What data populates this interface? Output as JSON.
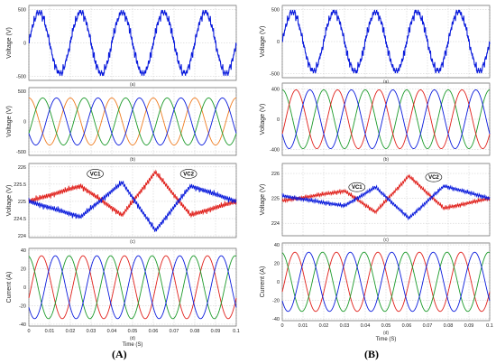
{
  "colors": {
    "blue": "#0a1bdc",
    "red": "#e0201b",
    "green": "#1c9a2a",
    "orange": "#ef7d22"
  },
  "figure_labels": [
    "(A)",
    "(B)"
  ],
  "chart_data": [
    {
      "type": "line",
      "figure": "(A)",
      "panel": "(a)",
      "ylabel": "Voltage  (V)",
      "yticks": [
        -500,
        0,
        500
      ],
      "ylim": [
        -560,
        560
      ],
      "xlim": [
        0,
        0.1
      ],
      "series": [
        {
          "color": "blue",
          "shape": "multilevel",
          "freq_hz": 50,
          "amplitude": 450,
          "phase_deg": 0,
          "steps": 5
        }
      ]
    },
    {
      "type": "line",
      "figure": "(A)",
      "panel": "(b)",
      "ylabel": "Voltage  (V)",
      "yticks": [
        -500,
        0,
        500
      ],
      "ylim": [
        -560,
        560
      ],
      "xlim": [
        0,
        0.1
      ],
      "series": [
        {
          "color": "orange",
          "shape": "sine",
          "freq_hz": 50,
          "amplitude": 390,
          "phase_deg": 90,
          "offset": 0
        },
        {
          "color": "green",
          "shape": "sine",
          "freq_hz": 50,
          "amplitude": 390,
          "phase_deg": -30,
          "offset": 0
        },
        {
          "color": "blue",
          "shape": "sine",
          "freq_hz": 50,
          "amplitude": 390,
          "phase_deg": 210,
          "offset": 0
        }
      ]
    },
    {
      "type": "line",
      "figure": "(A)",
      "panel": "(c)",
      "ylabel": "Voltage  (V)",
      "yticks": [
        224,
        224.5,
        225,
        225.5,
        226
      ],
      "ylim": [
        223.95,
        226.1
      ],
      "xlim": [
        0,
        0.1
      ],
      "annotations": [
        {
          "text": "VC1",
          "x": 0.032,
          "y": 225.8
        },
        {
          "text": "VC2",
          "x": 0.077,
          "y": 225.8
        }
      ],
      "series": [
        {
          "color": "red",
          "shape": "capacitor",
          "center": 225.0,
          "peaks": [
            [
              0.025,
              225.45
            ],
            [
              0.045,
              224.6
            ],
            [
              0.061,
              225.85
            ],
            [
              0.078,
              224.6
            ],
            [
              0.1,
              225.0
            ]
          ],
          "start": [
            0,
            225.0
          ]
        },
        {
          "color": "blue",
          "shape": "capacitor",
          "center": 225.0,
          "peaks": [
            [
              0.025,
              224.55
            ],
            [
              0.045,
              225.55
            ],
            [
              0.061,
              224.15
            ],
            [
              0.078,
              225.45
            ],
            [
              0.1,
              225.0
            ]
          ],
          "start": [
            0,
            225.0
          ]
        }
      ]
    },
    {
      "type": "line",
      "figure": "(A)",
      "panel": "(d)",
      "ylabel": "Current  (A)",
      "xlabel": "Time (S)",
      "yticks": [
        -40,
        -20,
        0,
        20,
        40
      ],
      "ylim": [
        -42,
        42
      ],
      "xlim": [
        0,
        0.1
      ],
      "xticks": [
        0,
        0.01,
        0.02,
        0.03,
        0.04,
        0.05,
        0.06,
        0.07,
        0.08,
        0.09,
        0.1
      ],
      "series": [
        {
          "color": "red",
          "shape": "sine",
          "freq_hz": 50,
          "amplitude": 34,
          "phase_deg": -20,
          "offset": 0
        },
        {
          "color": "green",
          "shape": "sine",
          "freq_hz": 50,
          "amplitude": 34,
          "phase_deg": 100,
          "offset": 0
        },
        {
          "color": "blue",
          "shape": "sine",
          "freq_hz": 50,
          "amplitude": 34,
          "phase_deg": 220,
          "offset": 0
        }
      ]
    },
    {
      "type": "line",
      "figure": "(B)",
      "panel": "(a)",
      "ylabel": "Voltage  (V)",
      "yticks": [
        -500,
        0,
        500
      ],
      "ylim": [
        -560,
        560
      ],
      "xlim": [
        0,
        0.1
      ],
      "series": [
        {
          "color": "blue",
          "shape": "multilevel",
          "freq_hz": 50,
          "amplitude": 450,
          "phase_deg": 0,
          "steps": 5
        }
      ]
    },
    {
      "type": "line",
      "figure": "(B)",
      "panel": "(b)",
      "ylabel": "Voltage  (V)",
      "yticks": [
        -400,
        0,
        400
      ],
      "ylim": [
        -480,
        480
      ],
      "xlim": [
        0,
        0.1
      ],
      "series": [
        {
          "color": "green",
          "shape": "sine",
          "freq_hz": 50,
          "amplitude": 390,
          "phase_deg": 90,
          "offset": 0
        },
        {
          "color": "red",
          "shape": "sine",
          "freq_hz": 50,
          "amplitude": 390,
          "phase_deg": -30,
          "offset": 0
        },
        {
          "color": "blue",
          "shape": "sine",
          "freq_hz": 50,
          "amplitude": 390,
          "phase_deg": 210,
          "offset": 0
        }
      ]
    },
    {
      "type": "line",
      "figure": "(B)",
      "panel": "(c)",
      "ylabel": "Voltage  (V)",
      "yticks": [
        224,
        225,
        226
      ],
      "ylim": [
        223.5,
        226.4
      ],
      "xlim": [
        0,
        0.1
      ],
      "annotations": [
        {
          "text": "VC1",
          "x": 0.036,
          "y": 225.45
        },
        {
          "text": "VC2",
          "x": 0.073,
          "y": 225.85
        }
      ],
      "series": [
        {
          "color": "red",
          "shape": "capacitor",
          "center": 225.0,
          "peaks": [
            [
              0.03,
              225.3
            ],
            [
              0.045,
              224.45
            ],
            [
              0.061,
              225.9
            ],
            [
              0.078,
              224.6
            ],
            [
              0.1,
              225.0
            ]
          ],
          "start": [
            0,
            224.9
          ]
        },
        {
          "color": "blue",
          "shape": "capacitor",
          "center": 225.0,
          "peaks": [
            [
              0.03,
              224.7
            ],
            [
              0.045,
              225.45
            ],
            [
              0.061,
              224.2
            ],
            [
              0.078,
              225.5
            ],
            [
              0.1,
              225.0
            ]
          ],
          "start": [
            0,
            225.1
          ]
        }
      ]
    },
    {
      "type": "line",
      "figure": "(B)",
      "panel": "(d)",
      "ylabel": "Current  (A)",
      "xlabel": "Time (S)",
      "yticks": [
        -40,
        -20,
        0,
        20,
        40
      ],
      "ylim": [
        -42,
        42
      ],
      "xlim": [
        0,
        0.1
      ],
      "xticks": [
        0,
        0.01,
        0.02,
        0.03,
        0.04,
        0.05,
        0.06,
        0.07,
        0.08,
        0.09,
        0.1
      ],
      "series": [
        {
          "color": "red",
          "shape": "sine",
          "freq_hz": 50,
          "amplitude": 32,
          "phase_deg": -20,
          "offset": 0
        },
        {
          "color": "green",
          "shape": "sine",
          "freq_hz": 50,
          "amplitude": 32,
          "phase_deg": 100,
          "offset": 0
        },
        {
          "color": "blue",
          "shape": "sine",
          "freq_hz": 50,
          "amplitude": 32,
          "phase_deg": 220,
          "offset": 0
        }
      ]
    }
  ]
}
